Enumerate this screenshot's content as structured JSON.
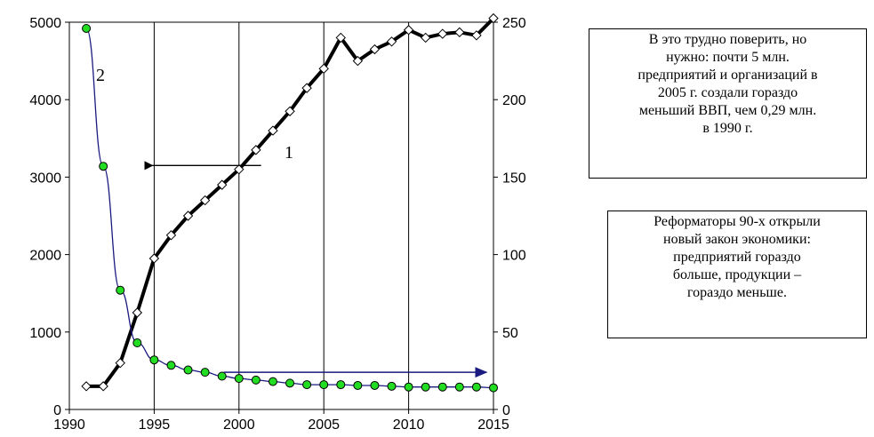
{
  "chart_data": {
    "type": "line",
    "title": "",
    "xlabel": "",
    "ylabel_left": "",
    "ylabel_right": "",
    "x_ticks": [
      "1990",
      "1995",
      "2000",
      "2005",
      "2010",
      "2015"
    ],
    "y_left_ticks": [
      "0",
      "1000",
      "2000",
      "3000",
      "4000",
      "5000"
    ],
    "y_right_ticks": [
      "0",
      "50",
      "100",
      "150",
      "200",
      "250"
    ],
    "xlim": [
      1990,
      2015
    ],
    "ylim_left": [
      0,
      5000
    ],
    "ylim_right": [
      0,
      250
    ],
    "grid": "vertical lines at x ticks, horizontal line at top",
    "series": [
      {
        "name": "1",
        "axis": "left",
        "color": "#000000",
        "marker": "white diamond",
        "x": [
          1991,
          1992,
          1993,
          1994,
          1995,
          1996,
          1997,
          1998,
          1999,
          2000,
          2001,
          2002,
          2003,
          2004,
          2005,
          2006,
          2007,
          2008,
          2009,
          2010,
          2011,
          2012,
          2013,
          2014,
          2015
        ],
        "values": [
          300,
          300,
          600,
          1250,
          1950,
          2250,
          2500,
          2700,
          2900,
          3100,
          3350,
          3600,
          3850,
          4150,
          4400,
          4800,
          4500,
          4650,
          4750,
          4900,
          4800,
          4850,
          4870,
          4830,
          5050
        ]
      },
      {
        "name": "2",
        "axis": "right",
        "color": "#1a1a80",
        "marker": "green circle",
        "x": [
          1991,
          1992,
          1993,
          1994,
          1995,
          1996,
          1997,
          1998,
          1999,
          2000,
          2001,
          2002,
          2003,
          2004,
          2005,
          2006,
          2007,
          2008,
          2009,
          2010,
          2011,
          2012,
          2013,
          2014,
          2015
        ],
        "values": [
          246,
          157,
          77,
          43,
          32,
          28.5,
          25.5,
          24,
          21.5,
          20,
          19,
          18,
          17,
          16,
          16,
          16,
          15.5,
          15.5,
          15,
          14.5,
          14.5,
          14.5,
          14.5,
          14.5,
          14
        ]
      }
    ],
    "annotations": [
      {
        "text": "1",
        "series": "1"
      },
      {
        "text": "2",
        "series": "2"
      }
    ],
    "arrows": [
      {
        "series": "1",
        "points_to": "left axis"
      },
      {
        "series": "2",
        "points_to": "right axis"
      }
    ]
  },
  "notes": {
    "note_1": "В это трудно поверить, но\nнужно: почти 5 млн.\nпредприятий и организаций  в\n2005 г. создали гораздо\nменьший ВВП, чем 0,29 млн.\nв 1990 г.",
    "note_2": "Реформаторы 90-х   открыли\nновый закон экономики:\nпредприятий гораздо\nбольше, продукции –\nгораздо меньше."
  }
}
